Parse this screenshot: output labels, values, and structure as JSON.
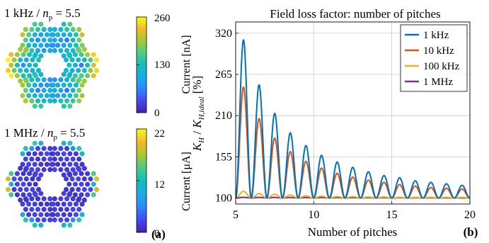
{
  "left_panel": {
    "panel_label": "(a)",
    "maps": [
      {
        "title_prefix": "1 kHz / ",
        "title_var": "n",
        "title_sub": "p",
        "title_suffix": " = 5.5",
        "colorbar_label": "Current [nA]",
        "colorbar_ticks": [
          "260",
          "130",
          "0"
        ],
        "colormap": [
          "#3e26a8",
          "#4748f1",
          "#2c89fc",
          "#1cace0",
          "#12beb9",
          "#4ecb87",
          "#a9c732",
          "#efba2c",
          "#f9fb15"
        ],
        "pattern": "edge-high"
      },
      {
        "title_prefix": "1 MHz / ",
        "title_var": "n",
        "title_sub": "p",
        "title_suffix": " = 5.5",
        "colorbar_label": "Current [μA]",
        "colorbar_ticks": [
          "22",
          "12",
          "0"
        ],
        "colormap": [
          "#3e26a8",
          "#4748f1",
          "#2c89fc",
          "#1cace0",
          "#12beb9",
          "#4ecb87",
          "#a9c732",
          "#efba2c",
          "#f9fb15"
        ],
        "pattern": "skin"
      }
    ]
  },
  "chart_data": {
    "type": "line",
    "title": "Field loss factor: number of pitches",
    "xlabel": "Number of pitches",
    "ylabel_parts": {
      "k": "K",
      "h_sub": "H",
      "sep": " / ",
      "k2": "K",
      "ideal_sub": "H,ideal",
      "unit": " [%]"
    },
    "panel_label": "(b)",
    "xlim": [
      5,
      20
    ],
    "ylim": [
      92,
      335
    ],
    "xticks": [
      "5",
      "10",
      "15",
      "20"
    ],
    "yticks": [
      "100",
      "155",
      "210",
      "265",
      "320"
    ],
    "grid": true,
    "legend_position": "top-right",
    "envelope": "peaks near half-integer pitch counts, minima of 100 near integer pitch counts",
    "series": [
      {
        "name": "1 kHz",
        "color": "#0072bd",
        "peaks": [
          [
            5.5,
            311
          ],
          [
            6.5,
            251
          ],
          [
            7.5,
            213
          ],
          [
            8.5,
            187
          ],
          [
            9.5,
            170
          ],
          [
            10.5,
            157
          ],
          [
            11.5,
            148
          ],
          [
            12.5,
            141
          ],
          [
            13.5,
            135
          ],
          [
            14.5,
            130
          ],
          [
            15.5,
            127
          ],
          [
            16.5,
            123
          ],
          [
            17.5,
            121
          ],
          [
            18.5,
            119
          ],
          [
            19.5,
            117
          ]
        ]
      },
      {
        "name": "10 kHz",
        "color": "#d95319",
        "peaks": [
          [
            5.5,
            248
          ],
          [
            6.5,
            206
          ],
          [
            7.5,
            180
          ],
          [
            8.5,
            162
          ],
          [
            9.5,
            149
          ],
          [
            10.5,
            140
          ],
          [
            11.5,
            133
          ],
          [
            12.5,
            128
          ],
          [
            13.5,
            124
          ],
          [
            14.5,
            121
          ],
          [
            15.5,
            118
          ],
          [
            16.5,
            116
          ],
          [
            17.5,
            114
          ],
          [
            18.5,
            113
          ],
          [
            19.5,
            112
          ]
        ]
      },
      {
        "name": "100 kHz",
        "color": "#edb120",
        "peaks": [
          [
            5.5,
            109
          ],
          [
            6.5,
            106
          ],
          [
            7.5,
            105
          ],
          [
            8.5,
            104
          ],
          [
            9.5,
            103
          ],
          [
            10.5,
            102.5
          ],
          [
            11.5,
            102
          ],
          [
            12.5,
            102
          ],
          [
            13.5,
            101.5
          ],
          [
            14.5,
            101.5
          ],
          [
            15.5,
            101
          ],
          [
            16.5,
            101
          ],
          [
            17.5,
            101
          ],
          [
            18.5,
            101
          ],
          [
            19.5,
            101
          ]
        ]
      },
      {
        "name": "1 MHz",
        "color": "#7e2f8e",
        "peaks": [
          [
            5.5,
            101
          ],
          [
            19.5,
            100.2
          ]
        ]
      }
    ]
  }
}
